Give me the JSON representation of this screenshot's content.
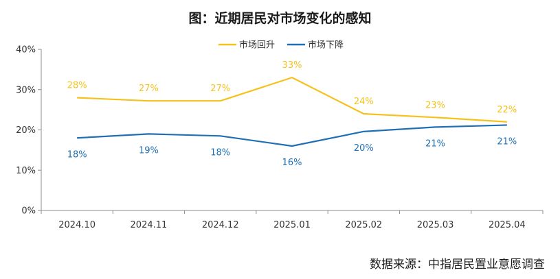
{
  "title": "图：近期居民对市场变化的感知",
  "source": "数据来源：中指居民置业意愿调查",
  "chart_data": {
    "type": "line",
    "categories": [
      "2024.10",
      "2024.11",
      "2024.12",
      "2025.01",
      "2025.02",
      "2025.03",
      "2025.04"
    ],
    "ylim": [
      0,
      40
    ],
    "yticks": [
      0,
      10,
      20,
      30,
      40
    ],
    "ytick_labels": [
      "0%",
      "10%",
      "20%",
      "30%",
      "40%"
    ],
    "grid": false,
    "legend_position": "top",
    "series": [
      {
        "name": "市场回升",
        "color": "#f5c21b",
        "values": [
          28,
          27.2,
          27.2,
          33,
          24,
          23.1,
          22
        ],
        "labels": [
          "28%",
          "27%",
          "27%",
          "33%",
          "24%",
          "23%",
          "22%"
        ]
      },
      {
        "name": "市场下降",
        "color": "#1f6fb4",
        "values": [
          18,
          19,
          18.5,
          16,
          19.6,
          20.7,
          21.2
        ],
        "labels": [
          "18%",
          "19%",
          "18%",
          "16%",
          "20%",
          "21%",
          "21%"
        ]
      }
    ]
  }
}
